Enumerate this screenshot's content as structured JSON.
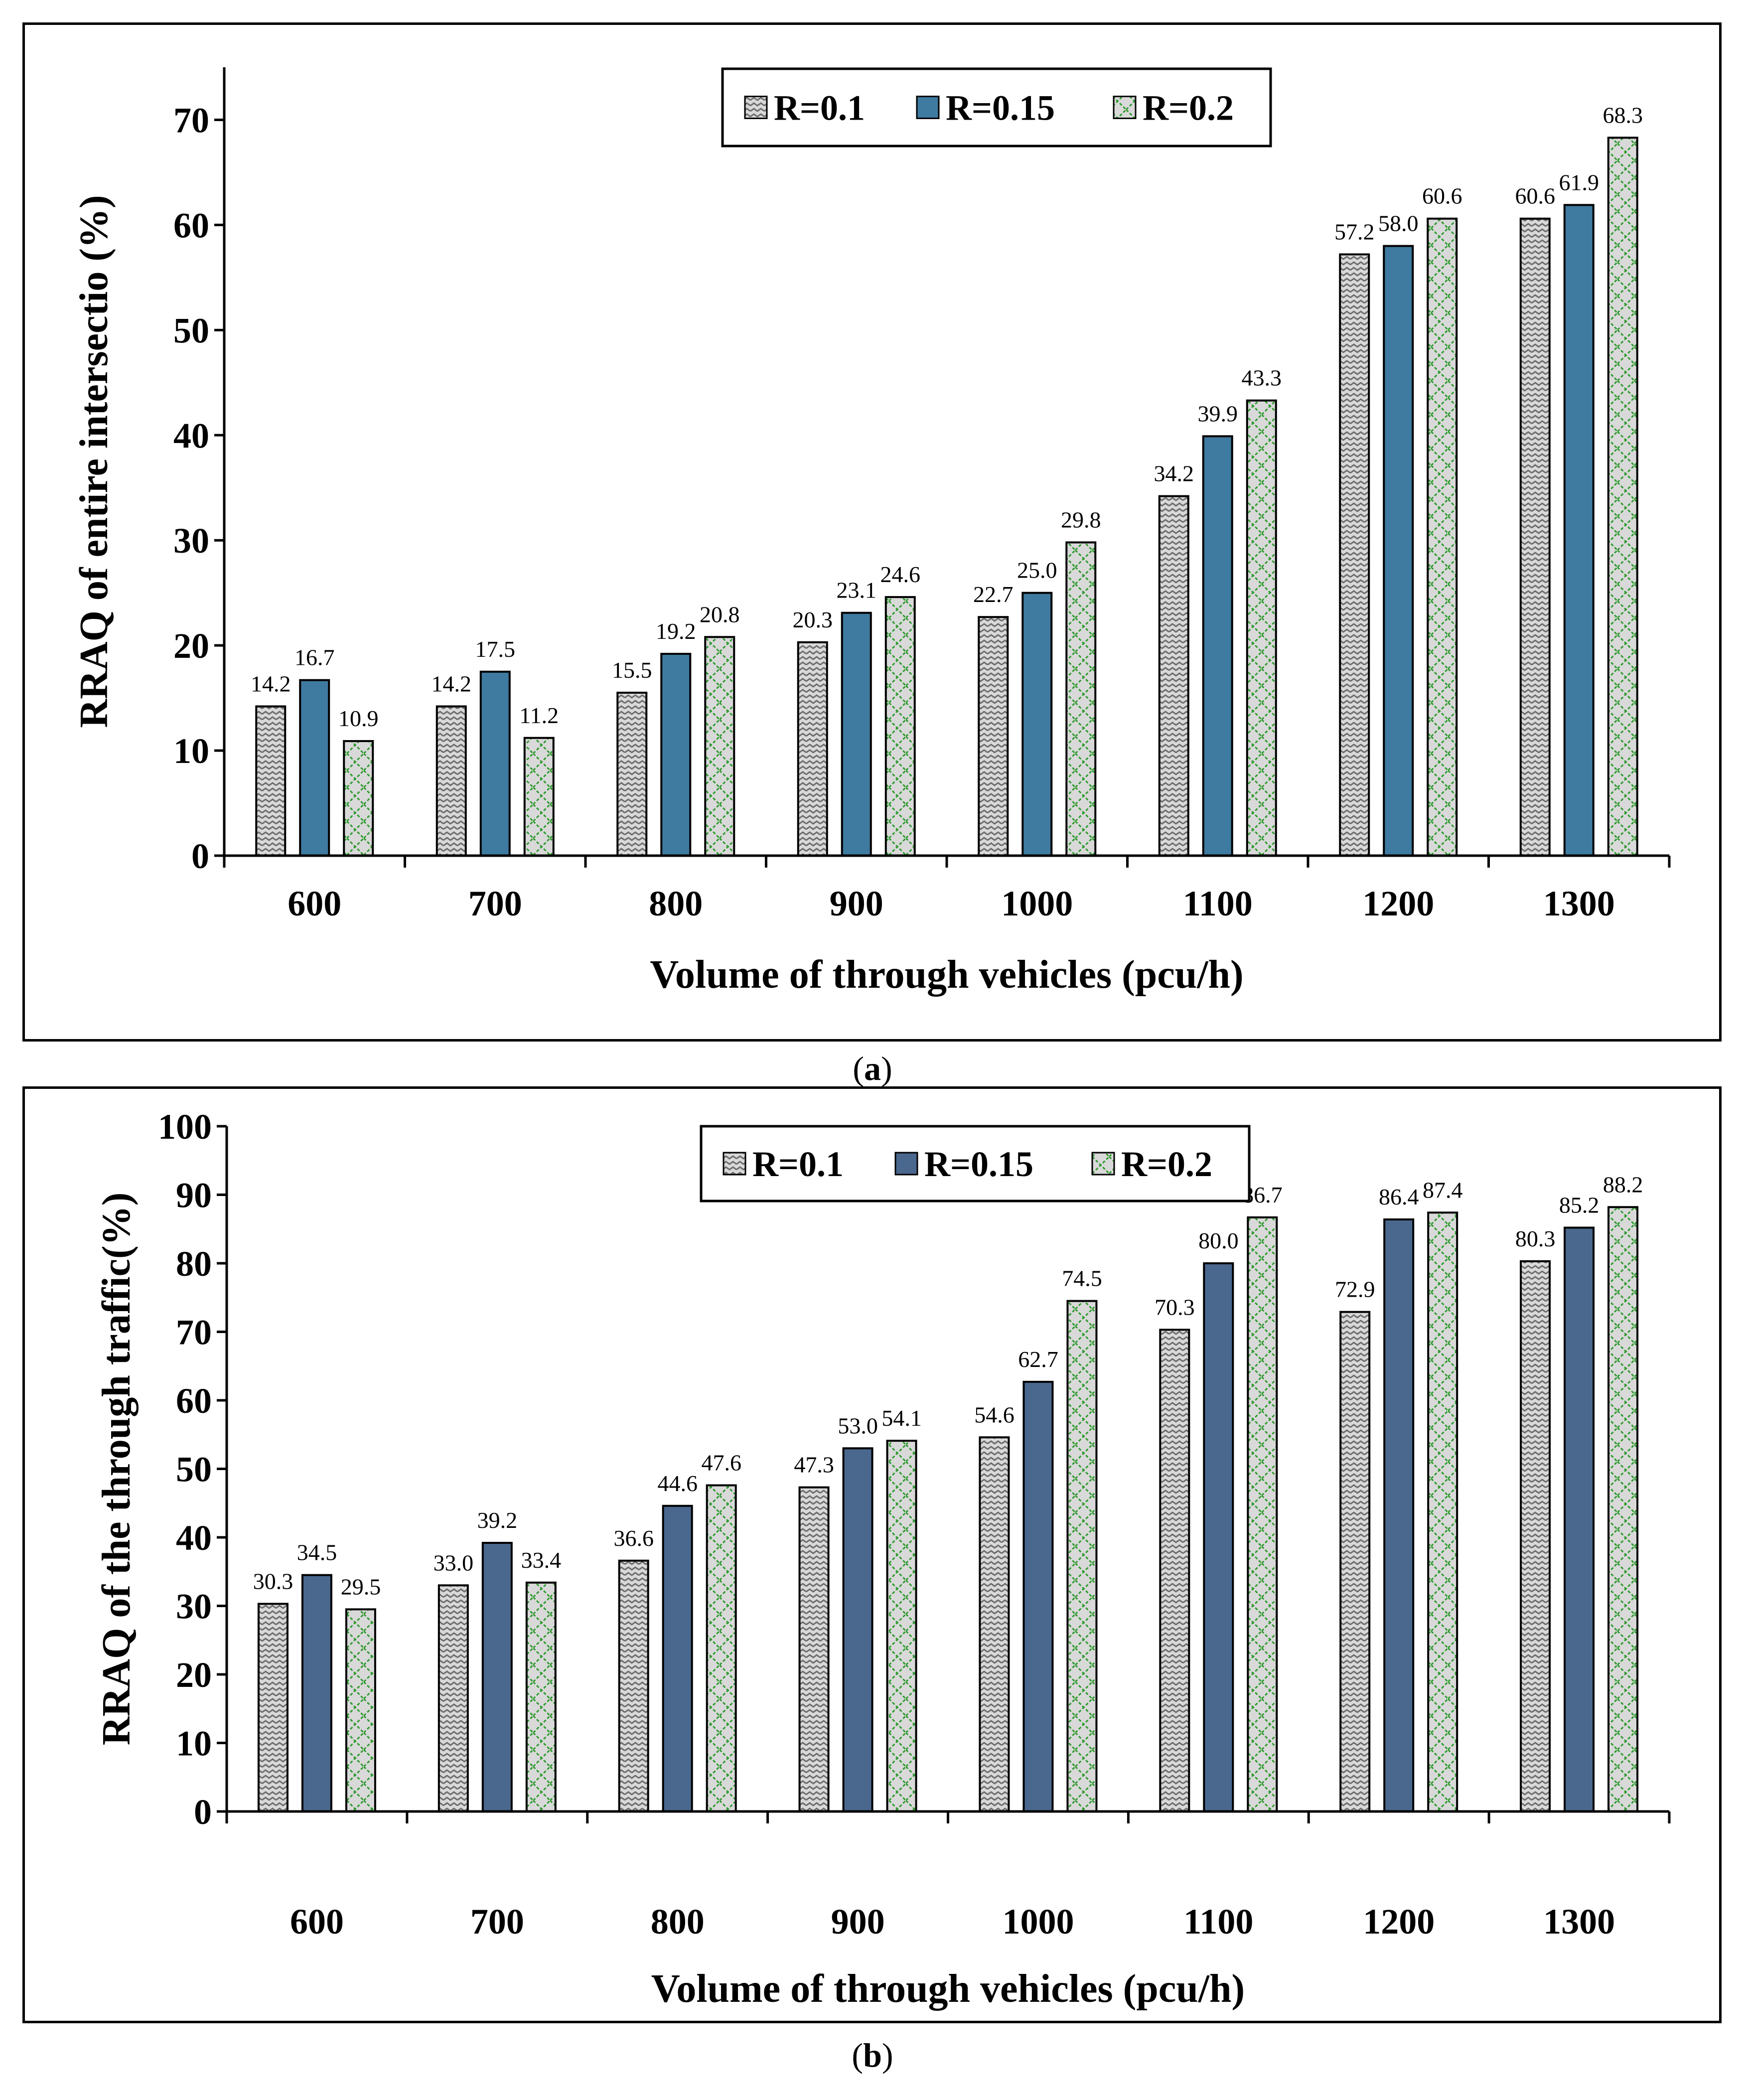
{
  "panels": [
    {
      "caption_letter": "a",
      "chart_data": {
        "type": "bar",
        "categories": [
          "600",
          "700",
          "800",
          "900",
          "1000",
          "1100",
          "1200",
          "1300"
        ],
        "series": [
          {
            "name": "R=0.1",
            "values": [
              14.2,
              14.2,
              15.5,
              20.3,
              22.7,
              34.2,
              57.2,
              60.6
            ]
          },
          {
            "name": "R=0.15",
            "values": [
              16.7,
              17.5,
              19.2,
              23.1,
              25.0,
              39.9,
              58.0,
              61.9
            ]
          },
          {
            "name": "R=0.2",
            "values": [
              10.9,
              11.2,
              20.8,
              24.6,
              29.8,
              43.3,
              60.6,
              68.3
            ]
          }
        ],
        "value_labels": [
          [
            "14.2",
            "14.2",
            "15.5",
            "20.3",
            "22.7",
            "34.2",
            "57.2",
            "60.6"
          ],
          [
            "16.7",
            "17.5",
            "19.2",
            "23.1",
            "25.0",
            "39.9",
            "58.0",
            "61.9"
          ],
          [
            "10.9",
            "11.2",
            "20.8",
            "24.6",
            "29.8",
            "43.3",
            "60.6",
            "68.3"
          ]
        ],
        "xlabel": "Volume of through vehicles (pcu/h)",
        "ylabel": "RRAQ of entire intersectio (%)",
        "ylim": [
          0,
          75
        ],
        "yticks": [
          0,
          10,
          20,
          30,
          40,
          50,
          60,
          70
        ],
        "grid": false,
        "legend_position": "top-center",
        "colors": {
          "R=0.1": "#d9d9d9",
          "R=0.15": "#3f7aa0",
          "R=0.2": "#d9d9d9"
        },
        "patterns": {
          "R=0.1": "zigzag-gray",
          "R=0.15": "solid",
          "R=0.2": "dashed-green-lattice"
        }
      }
    },
    {
      "caption_letter": "b",
      "chart_data": {
        "type": "bar",
        "categories": [
          "600",
          "700",
          "800",
          "900",
          "1000",
          "1100",
          "1200",
          "1300"
        ],
        "series": [
          {
            "name": "R=0.1",
            "values": [
              30.3,
              33.0,
              36.6,
              47.3,
              54.6,
              70.3,
              72.9,
              80.3
            ]
          },
          {
            "name": "R=0.15",
            "values": [
              34.5,
              39.2,
              44.6,
              53.0,
              62.7,
              80.0,
              86.4,
              85.2
            ]
          },
          {
            "name": "R=0.2",
            "values": [
              29.5,
              33.4,
              47.6,
              54.1,
              74.5,
              86.7,
              87.4,
              88.2
            ]
          }
        ],
        "value_labels": [
          [
            "30.3",
            "33.0",
            "36.6",
            "47.3",
            "54.6",
            "70.3",
            "72.9",
            "80.3"
          ],
          [
            "34.5",
            "39.2",
            "44.6",
            "53.0",
            "62.7",
            "80.0",
            "86.4",
            "85.2"
          ],
          [
            "29.5",
            "33.4",
            "47.6",
            "54.1",
            "74.5",
            "86.7",
            "87.4",
            "88.2"
          ]
        ],
        "xlabel": "Volume of through vehicles (pcu/h)",
        "ylabel": "RRAQ of the through traffic(%)",
        "ylim": [
          0,
          100
        ],
        "yticks": [
          0,
          10,
          20,
          30,
          40,
          50,
          60,
          70,
          80,
          90,
          100
        ],
        "grid": false,
        "legend_position": "top-center",
        "colors": {
          "R=0.1": "#d9d9d9",
          "R=0.15": "#4a678e",
          "R=0.2": "#d9d9d9"
        },
        "patterns": {
          "R=0.1": "zigzag-gray",
          "R=0.15": "solid",
          "R=0.2": "dashed-green-lattice"
        }
      }
    }
  ]
}
